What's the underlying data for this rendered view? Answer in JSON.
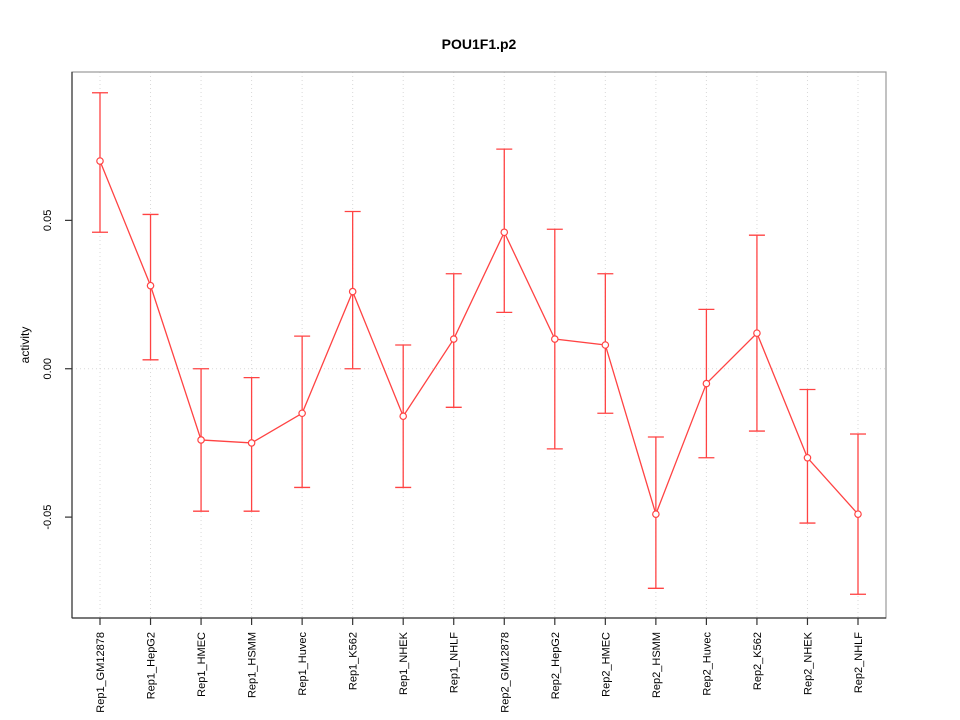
{
  "chart_data": {
    "type": "line",
    "title": "POU1F1.p2",
    "xlabel": "",
    "ylabel": "activity",
    "categories": [
      "Rep1_GM12878",
      "Rep1_HepG2",
      "Rep1_HMEC",
      "Rep1_HSMM",
      "Rep1_Huvec",
      "Rep1_K562",
      "Rep1_NHEK",
      "Rep1_NHLF",
      "Rep2_GM12878",
      "Rep2_HepG2",
      "Rep2_HMEC",
      "Rep2_HSMM",
      "Rep2_Huvec",
      "Rep2_K562",
      "Rep2_NHEK",
      "Rep2_NHLF"
    ],
    "series": [
      {
        "name": "activity",
        "values": [
          0.07,
          0.028,
          -0.024,
          -0.025,
          -0.015,
          0.026,
          -0.016,
          0.01,
          0.046,
          0.01,
          0.008,
          -0.049,
          -0.005,
          0.012,
          -0.03,
          -0.049
        ],
        "ci_low": [
          0.046,
          0.003,
          -0.048,
          -0.048,
          -0.04,
          0.0,
          -0.04,
          -0.013,
          0.019,
          -0.027,
          -0.015,
          -0.074,
          -0.03,
          -0.021,
          -0.052,
          -0.076
        ],
        "ci_high": [
          0.093,
          0.052,
          0.0,
          -0.003,
          0.011,
          0.053,
          0.008,
          0.032,
          0.074,
          0.047,
          0.032,
          -0.023,
          0.02,
          0.045,
          -0.007,
          -0.022
        ]
      }
    ],
    "error_bars": true,
    "marker": "open-circle",
    "yticks": {
      "values": [
        -0.05,
        0.0,
        0.05
      ],
      "labels": [
        "-0.05",
        "0.00",
        "0.05"
      ]
    },
    "ylim": [
      -0.084,
      0.1
    ],
    "grid": {
      "vertical": "dotted at each category",
      "horizontal": "dotted at 0 only"
    },
    "legend": "none",
    "colors": {
      "series": "#ff4343",
      "grid": "#d9d9d9",
      "box": "#999999",
      "axis": "#333333",
      "text": "#000000",
      "marker_fill": "#ffffff"
    }
  }
}
